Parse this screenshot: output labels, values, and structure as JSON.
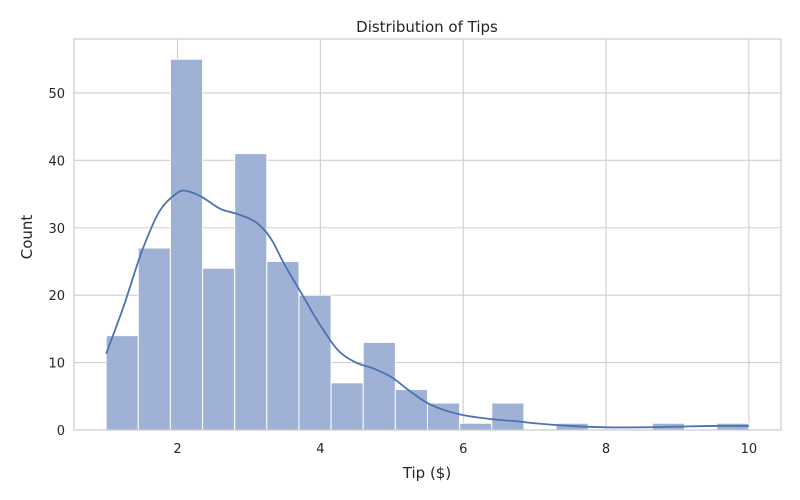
{
  "chart_data": {
    "type": "bar",
    "subtype": "histogram",
    "title": "Distribution of Tips",
    "xlabel": "Tip ($)",
    "ylabel": "Count",
    "xlim": [
      0.55,
      10.45
    ],
    "ylim": [
      0,
      58
    ],
    "xticks": [
      2,
      4,
      6,
      8,
      10
    ],
    "yticks": [
      0,
      10,
      20,
      30,
      40,
      50
    ],
    "grid": true,
    "bar_color": "#9fb2d6",
    "bar_edge_color": "#ffffff",
    "kde_color": "#4c72b0",
    "bins": [
      {
        "x0": 1.0,
        "x1": 1.45,
        "count": 14
      },
      {
        "x0": 1.45,
        "x1": 1.9,
        "count": 27
      },
      {
        "x0": 1.9,
        "x1": 2.35,
        "count": 55
      },
      {
        "x0": 2.35,
        "x1": 2.8,
        "count": 24
      },
      {
        "x0": 2.8,
        "x1": 3.25,
        "count": 41
      },
      {
        "x0": 3.25,
        "x1": 3.7,
        "count": 25
      },
      {
        "x0": 3.7,
        "x1": 4.15,
        "count": 20
      },
      {
        "x0": 4.15,
        "x1": 4.6,
        "count": 7
      },
      {
        "x0": 4.6,
        "x1": 5.05,
        "count": 13
      },
      {
        "x0": 5.05,
        "x1": 5.5,
        "count": 6
      },
      {
        "x0": 5.5,
        "x1": 5.95,
        "count": 4
      },
      {
        "x0": 5.95,
        "x1": 6.4,
        "count": 1
      },
      {
        "x0": 6.4,
        "x1": 6.85,
        "count": 4
      },
      {
        "x0": 6.85,
        "x1": 7.3,
        "count": 0
      },
      {
        "x0": 7.3,
        "x1": 7.75,
        "count": 1
      },
      {
        "x0": 7.75,
        "x1": 8.2,
        "count": 0
      },
      {
        "x0": 8.2,
        "x1": 8.65,
        "count": 0
      },
      {
        "x0": 8.65,
        "x1": 9.1,
        "count": 1
      },
      {
        "x0": 9.1,
        "x1": 9.55,
        "count": 0
      },
      {
        "x0": 9.55,
        "x1": 10.0,
        "count": 1
      }
    ],
    "kde": {
      "x": [
        1.0,
        1.25,
        1.5,
        1.75,
        2.0,
        2.15,
        2.35,
        2.6,
        2.85,
        3.1,
        3.3,
        3.5,
        3.75,
        4.0,
        4.25,
        4.5,
        4.75,
        5.0,
        5.25,
        5.5,
        5.75,
        6.0,
        6.25,
        6.5,
        6.75,
        7.0,
        7.5,
        8.0,
        8.5,
        9.0,
        9.5,
        10.0
      ],
      "y": [
        11.3,
        18.5,
        26.5,
        32.5,
        35.2,
        35.4,
        34.5,
        32.8,
        32.0,
        30.8,
        28.5,
        24.5,
        20.0,
        15.5,
        11.8,
        10.0,
        9.1,
        7.8,
        5.8,
        4.0,
        2.9,
        2.2,
        1.8,
        1.5,
        1.3,
        1.0,
        0.6,
        0.4,
        0.4,
        0.5,
        0.6,
        0.6
      ]
    }
  }
}
